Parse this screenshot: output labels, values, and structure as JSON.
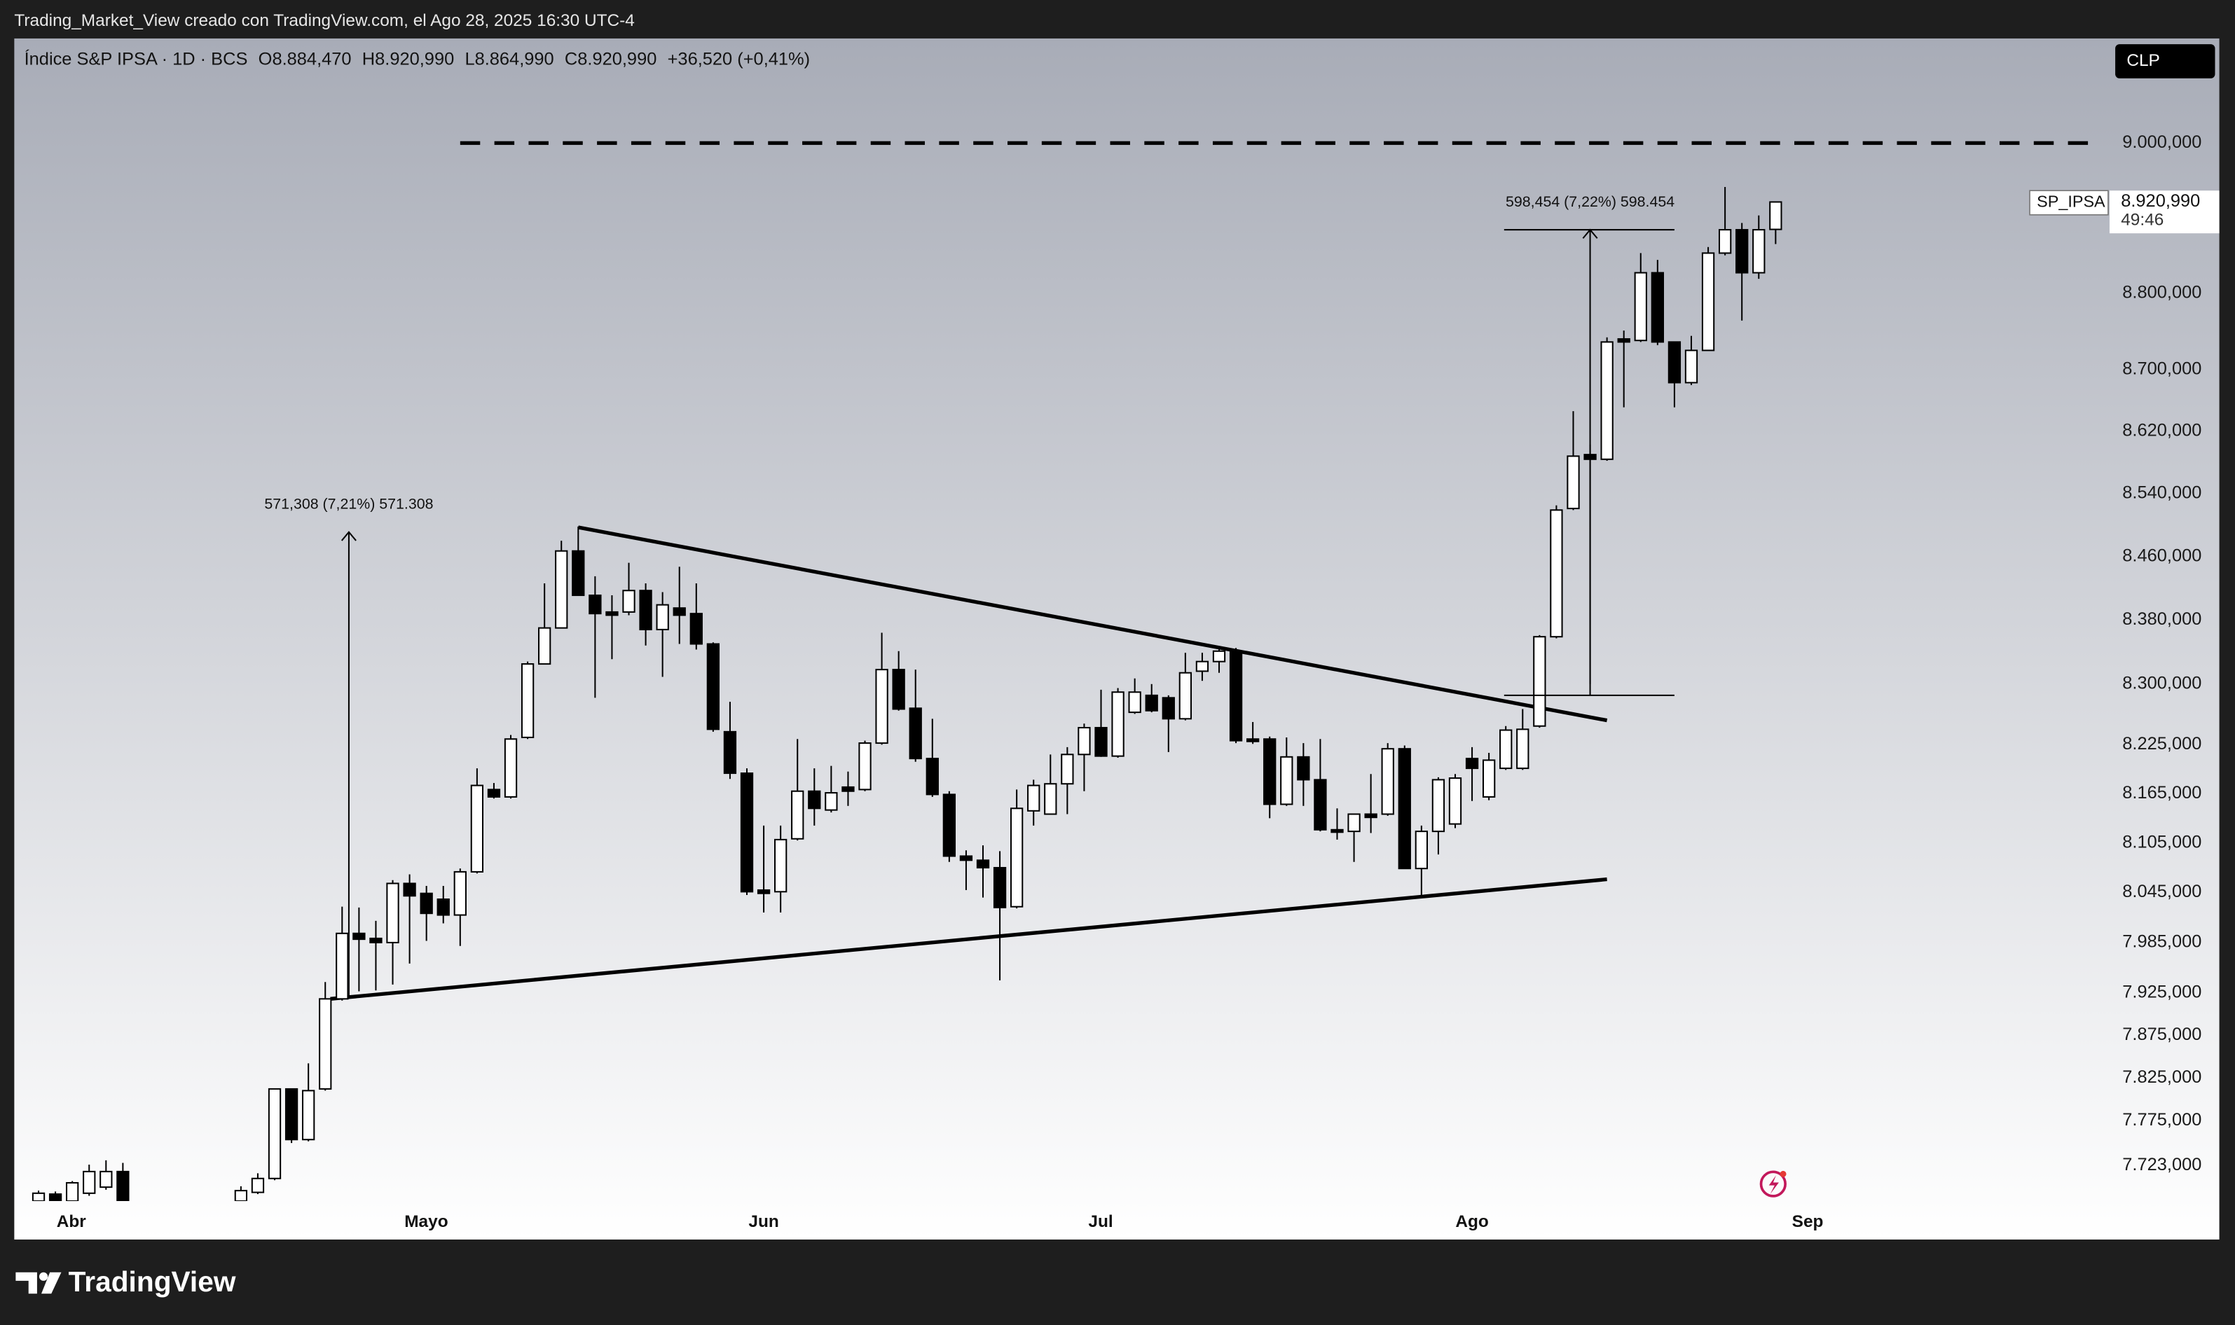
{
  "header": {
    "attribution": "Trading_Market_View creado con TradingView.com, el Ago 28, 2025 16:30 UTC-4"
  },
  "legend": {
    "symbol": "Índice S&P IPSA · 1D · BCS",
    "open": "O8.884,470",
    "high": "H8.920,990",
    "low": "L8.864,990",
    "close": "C8.920,990",
    "change": "+36,520 (+0,41%)"
  },
  "currency_button": "CLP",
  "price_label": {
    "name": "SP_IPSA",
    "value": "8.920,990",
    "countdown": "49:46"
  },
  "footer": {
    "brand": "TradingView"
  },
  "chart_data": {
    "type": "candlestick",
    "log_scale": true,
    "grid": false,
    "xlim": [
      -1.44,
      122.8
    ],
    "xticks": [
      {
        "value": 1.94,
        "label": "Abr"
      },
      {
        "value": 22.99,
        "label": "Mayo"
      },
      {
        "value": 43.0,
        "label": "Jun"
      },
      {
        "value": 62.98,
        "label": "Jul"
      },
      {
        "value": 85.0,
        "label": "Ago"
      },
      {
        "value": 104.9,
        "label": "Sep"
      }
    ],
    "ylim": [
      7682,
      9142
    ],
    "yticks": [
      {
        "value": 9000,
        "label": "9.000,000"
      },
      {
        "value": 8800,
        "label": "8.800,000"
      },
      {
        "value": 8700,
        "label": "8.700,000"
      },
      {
        "value": 8620,
        "label": "8.620,000"
      },
      {
        "value": 8540,
        "label": "8.540,000"
      },
      {
        "value": 8460,
        "label": "8.460,000"
      },
      {
        "value": 8380,
        "label": "8.380,000"
      },
      {
        "value": 8300,
        "label": "8.300,000"
      },
      {
        "value": 8225,
        "label": "8.225,000"
      },
      {
        "value": 8165,
        "label": "8.165,000"
      },
      {
        "value": 8105,
        "label": "8.105,000"
      },
      {
        "value": 8045,
        "label": "8.045,000"
      },
      {
        "value": 7985,
        "label": "7.985,000"
      },
      {
        "value": 7925,
        "label": "7.925,000"
      },
      {
        "value": 7875,
        "label": "7.875,000"
      },
      {
        "value": 7825,
        "label": "7.825,000"
      },
      {
        "value": 7775,
        "label": "7.775,000"
      },
      {
        "value": 7723,
        "label": "7.723,000"
      }
    ],
    "up_color": "#ffffff",
    "down_color": "#000000",
    "x": [
      0,
      1,
      2,
      3,
      4,
      5,
      12,
      13,
      14,
      15,
      16,
      17,
      18,
      19,
      20,
      21,
      22,
      23,
      24,
      25,
      26,
      27,
      28,
      29,
      30,
      31,
      32,
      33,
      34,
      35,
      36,
      37,
      38,
      39,
      40,
      41,
      42,
      43,
      44,
      45,
      46,
      47,
      48,
      49,
      50,
      51,
      52,
      53,
      54,
      55,
      56,
      57,
      58,
      59,
      60,
      61,
      62,
      63,
      64,
      65,
      66,
      67,
      68,
      69,
      70,
      71,
      72,
      73,
      74,
      75,
      76,
      77,
      78,
      79,
      80,
      81,
      82,
      83,
      84,
      85,
      86,
      87,
      88,
      89,
      90,
      91,
      92,
      93,
      94,
      95,
      96,
      97,
      98,
      99,
      100,
      101,
      102,
      103
    ],
    "open": [
      7682,
      7690,
      7682,
      7691,
      7698,
      7716,
      7682,
      7692,
      7708,
      7812,
      7753,
      7812,
      7918,
      7996,
      7990,
      7985,
      8056,
      8044,
      8037,
      8018,
      8070,
      8170,
      8161,
      8234,
      8325,
      8370,
      8467,
      8411,
      8390,
      8390,
      8417,
      8368,
      8395,
      8388,
      8350,
      8241,
      8190,
      8048,
      8046,
      8110,
      8168,
      8145,
      8173,
      8170,
      8227,
      8318,
      8270,
      8208,
      8164,
      8089,
      8084,
      8075,
      8028,
      8144,
      8140,
      8177,
      8213,
      8246,
      8211,
      8265,
      8286,
      8283,
      8257,
      8316,
      8328,
      8341,
      8232,
      8232,
      8152,
      8210,
      8182,
      8121,
      8119,
      8140,
      8140,
      8220,
      8074,
      8119,
      8128,
      8208,
      8161,
      8196,
      8196,
      8248,
      8359,
      8521,
      8590,
      8584,
      8740,
      8738,
      8827,
      8736,
      8683,
      8725,
      8853,
      8884,
      8827,
      8884.47
    ],
    "high": [
      7694,
      7693,
      7705,
      7724,
      7729,
      7726,
      7699,
      7714,
      7812,
      7812,
      7842,
      7938,
      8028,
      8027,
      8011,
      8060,
      8067,
      8053,
      8053,
      8074,
      8196,
      8178,
      8237,
      8328,
      8426,
      8480,
      8498,
      8435,
      8411,
      8452,
      8426,
      8415,
      8447,
      8426,
      8352,
      8278,
      8196,
      8126,
      8126,
      8232,
      8196,
      8199,
      8192,
      8230,
      8364,
      8341,
      8318,
      8257,
      8168,
      8096,
      8102,
      8095,
      8170,
      8182,
      8213,
      8222,
      8251,
      8293,
      8295,
      8307,
      8300,
      8286,
      8339,
      8339,
      8343,
      8345,
      8253,
      8235,
      8234,
      8227,
      8232,
      8147,
      8140,
      8189,
      8227,
      8224,
      8126,
      8185,
      8189,
      8222,
      8215,
      8248,
      8269,
      8361,
      8525,
      8646,
      8603,
      8742,
      8751,
      8853,
      8844,
      8736,
      8744,
      8861,
      8941,
      8893,
      8903,
      8920.99
    ],
    "low": [
      7680,
      7680,
      7680,
      7688,
      7695,
      7680,
      7680,
      7690,
      7706,
      7749,
      7751,
      7810,
      7916,
      7927,
      7928,
      7935,
      7960,
      7987,
      8008,
      7981,
      8068,
      8159,
      8159,
      8232,
      8325,
      8370,
      8411,
      8283,
      8331,
      8386,
      8348,
      8309,
      8350,
      8343,
      8241,
      8183,
      8042,
      8021,
      8021,
      8108,
      8126,
      8142,
      8150,
      8168,
      8225,
      8267,
      8204,
      8161,
      8082,
      8048,
      8039,
      7940,
      8026,
      8126,
      8140,
      8140,
      8168,
      8210,
      8209,
      8263,
      8265,
      8216,
      8255,
      8304,
      8314,
      8227,
      8226,
      8135,
      8150,
      8150,
      8119,
      8109,
      8082,
      8117,
      8138,
      8074,
      8039,
      8091,
      8123,
      8156,
      8157,
      8194,
      8194,
      8246,
      8357,
      8519,
      8300,
      8582,
      8651,
      8736,
      8732,
      8651,
      8680,
      8725,
      8850,
      8764,
      8819,
      8864.99
    ],
    "close": [
      7691,
      7682,
      7703,
      7716,
      7716,
      7682,
      7694,
      7708,
      7812,
      7753,
      7810,
      7918,
      7996,
      7989,
      7985,
      8056,
      8041,
      8020,
      8018,
      8070,
      8175,
      8161,
      8232,
      8325,
      8370,
      8467,
      8411,
      8388,
      8386,
      8417,
      8368,
      8399,
      8386,
      8350,
      8244,
      8190,
      8046,
      8044,
      8109,
      8168,
      8147,
      8166,
      8168,
      8227,
      8318,
      8269,
      8208,
      8164,
      8089,
      8084,
      8075,
      8027,
      8147,
      8175,
      8177,
      8213,
      8246,
      8211,
      8290,
      8290,
      8267,
      8257,
      8314,
      8328,
      8341,
      8230,
      8229,
      8152,
      8210,
      8182,
      8121,
      8118,
      8140,
      8136,
      8220,
      8074,
      8119,
      8182,
      8184,
      8196,
      8206,
      8243,
      8244,
      8359,
      8519,
      8588,
      8584,
      8736,
      8736,
      8827,
      8736,
      8683,
      8725,
      8853,
      8884,
      8827,
      8884,
      8920.99
    ],
    "horizontal_line": {
      "value": 9000,
      "x": [
        25,
        122
      ]
    },
    "trendlines": [
      {
        "x": [
          32.0,
          93.0
        ],
        "y": [
          8497,
          8255
        ]
      },
      {
        "x": [
          17.3,
          93.0
        ],
        "y": [
          7918,
          8061
        ]
      }
    ],
    "measures": [
      {
        "label": "571,308 (7,21%) 571.308",
        "x": 18.4,
        "from": 7920,
        "to": 8491
      },
      {
        "label": "598,454 (7,22%) 598.454",
        "x": 92.0,
        "from": 8286,
        "to": 8884,
        "bracket_x": [
          86.9,
          97.0
        ]
      }
    ]
  }
}
